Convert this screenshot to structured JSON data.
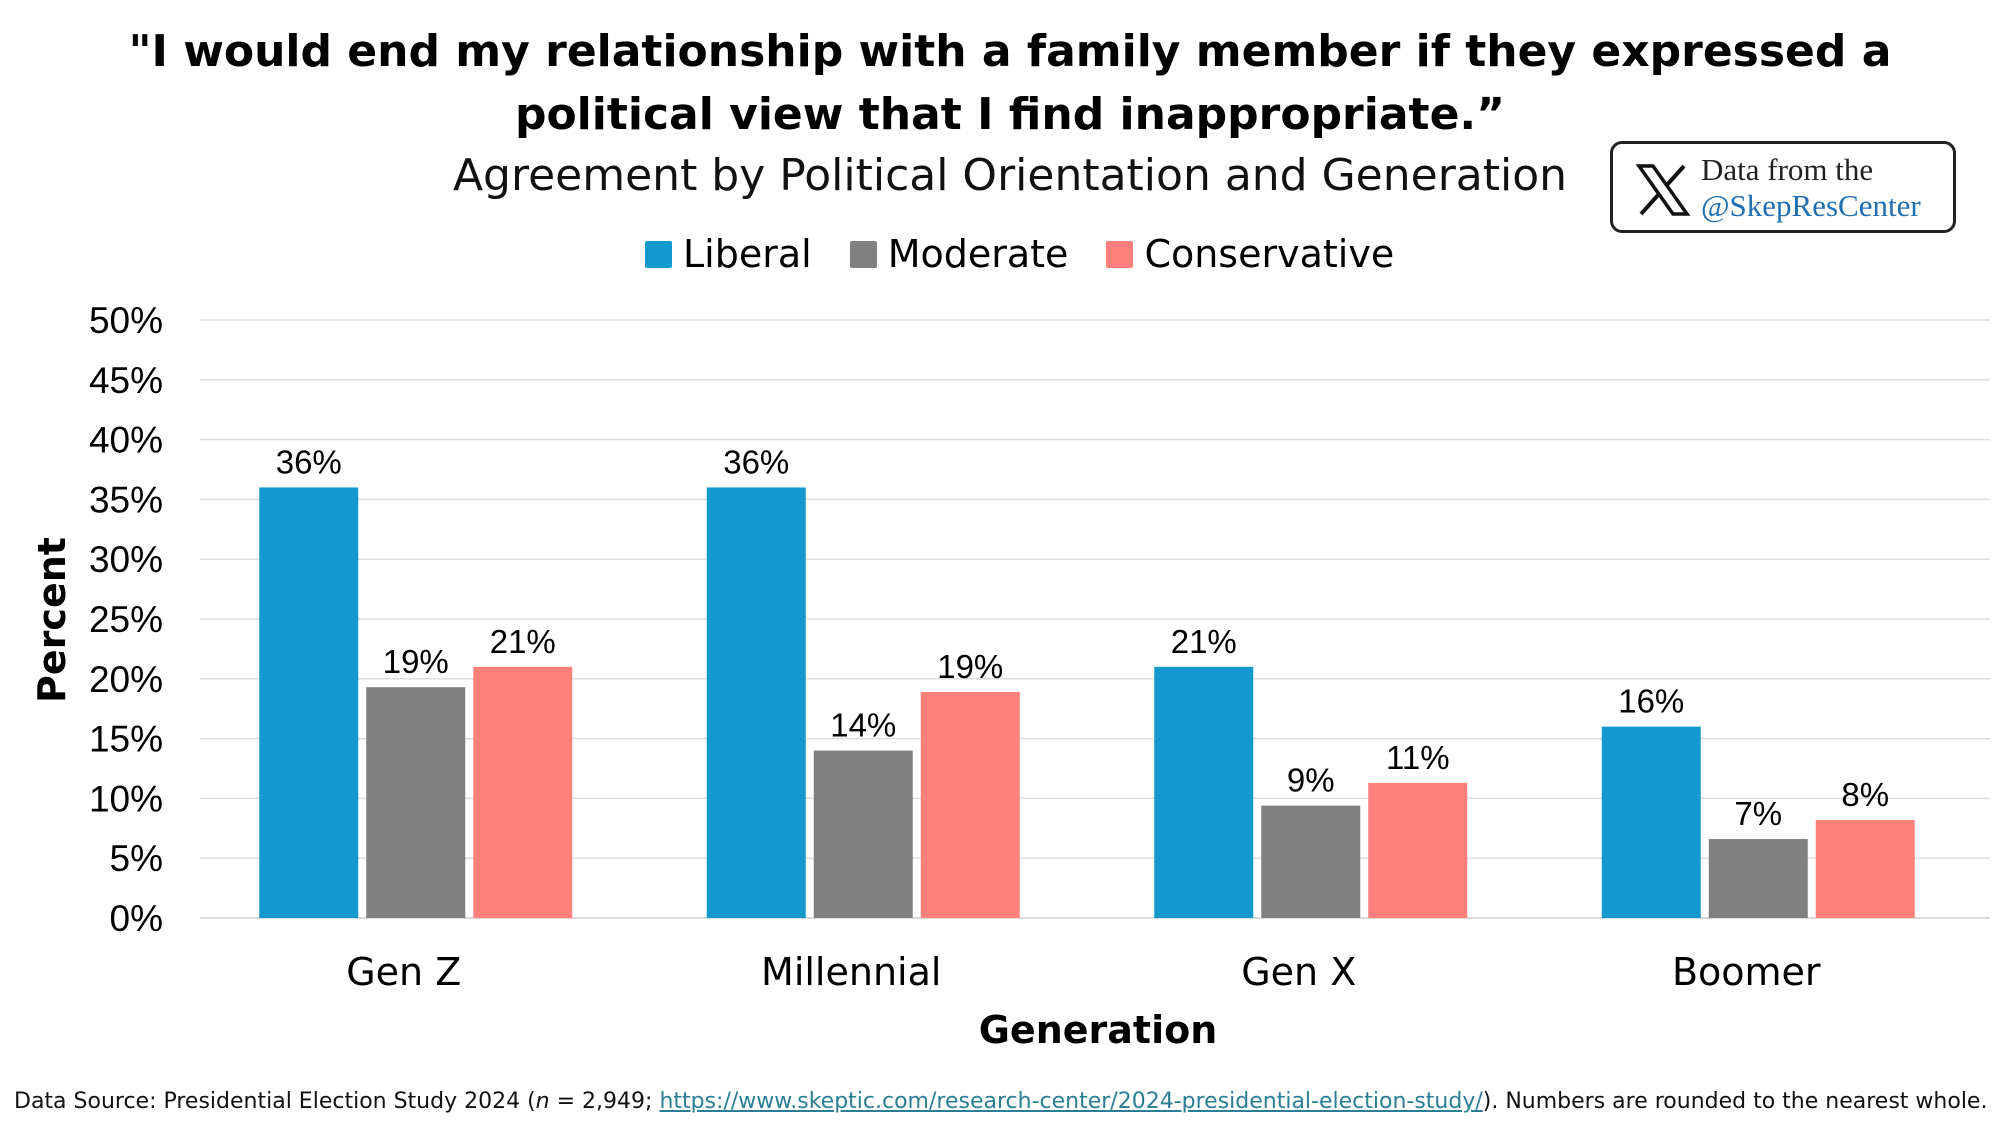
{
  "chart_data": {
    "type": "bar",
    "title_line1": "\"I would end my relationship with a family member if they expressed a",
    "title_line2": "political view that I find inappropriate.”",
    "subtitle": "Agreement by Political Orientation and Generation",
    "xlabel": "Generation",
    "ylabel": "Percent",
    "ylim": [
      0,
      50
    ],
    "yticks": [
      "0%",
      "5%",
      "10%",
      "15%",
      "20%",
      "25%",
      "30%",
      "35%",
      "40%",
      "45%",
      "50%"
    ],
    "grid": true,
    "legend_position": "top-center",
    "categories": [
      "Gen Z",
      "Millennial",
      "Gen X",
      "Boomer"
    ],
    "series": [
      {
        "name": "Liberal",
        "color": "#1399d0",
        "values": [
          36,
          36,
          21,
          16
        ],
        "labels": [
          "36%",
          "36%",
          "21%",
          "16%"
        ]
      },
      {
        "name": "Moderate",
        "color": "#808080",
        "values": [
          19.3,
          14,
          9.4,
          6.6
        ],
        "labels": [
          "19%",
          "14%",
          "9%",
          "7%"
        ]
      },
      {
        "name": "Conservative",
        "color": "#ff7f7a",
        "values": [
          21,
          18.9,
          11.3,
          8.2
        ],
        "labels": [
          "21%",
          "19%",
          "11%",
          "8%"
        ]
      }
    ]
  },
  "badge": {
    "line1": "Data from the",
    "line2": "@SkepResCenter",
    "icon": "x-logo-icon"
  },
  "source": {
    "prefix": "Data Source: Presidential Election Study 2024 (",
    "n_label": "n",
    "n_value": " = 2,949; ",
    "url": "https://www.skeptic.com/research-center/2024-presidential-election-study/",
    "suffix": "). Numbers are rounded to the nearest whole."
  }
}
